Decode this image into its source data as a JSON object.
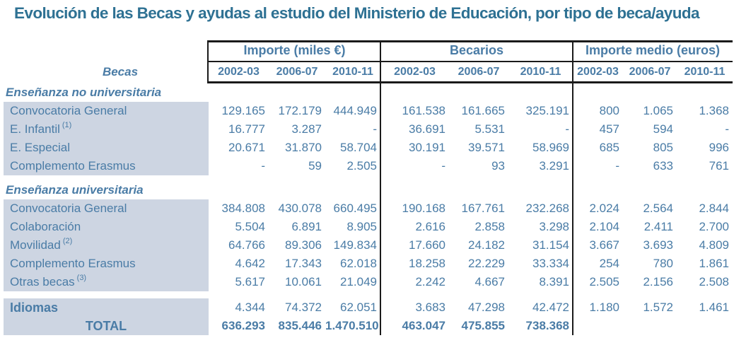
{
  "title": "Evolución de las Becas y ayudas al estudio del Ministerio de Educación, por tipo de beca/ayuda",
  "colors": {
    "title_text": "#2e7193",
    "body_text": "#4a7ca6",
    "row_highlight": "#cdd5e2",
    "rule_lines": "#1a1a1a"
  },
  "table": {
    "corner_label": "Becas",
    "groups": [
      {
        "label": "Importe (miles €)",
        "years": [
          "2002-03",
          "2006-07",
          "2010-11"
        ]
      },
      {
        "label": "Becarios",
        "years": [
          "2002-03",
          "2006-07",
          "2010-11"
        ]
      },
      {
        "label": "Importe medio (euros)",
        "years": [
          "2002-03",
          "2006-07",
          "2010-11"
        ]
      }
    ],
    "sections": [
      {
        "header": "Enseñanza no universitaria",
        "rows": [
          {
            "label": "Convocatoria General",
            "sup": "",
            "style": "normal",
            "values": [
              "129.165",
              "172.179",
              "444.949",
              "161.538",
              "161.665",
              "325.191",
              "800",
              "1.065",
              "1.368"
            ]
          },
          {
            "label": "E. Infantil",
            "sup": "(1)",
            "style": "normal",
            "values": [
              "16.777",
              "3.287",
              "-",
              "36.691",
              "5.531",
              "-",
              "457",
              "594",
              "-"
            ]
          },
          {
            "label": "E. Especial",
            "sup": "",
            "style": "normal",
            "values": [
              "20.671",
              "31.870",
              "58.704",
              "30.191",
              "39.571",
              "58.969",
              "685",
              "805",
              "996"
            ]
          },
          {
            "label": "Complemento Erasmus",
            "sup": "",
            "style": "normal",
            "values": [
              "-",
              "59",
              "2.505",
              "-",
              "93",
              "3.291",
              "-",
              "633",
              "761"
            ]
          }
        ]
      },
      {
        "header": "Enseñanza universitaria",
        "rows": [
          {
            "label": "Convocatoria General",
            "sup": "",
            "style": "normal",
            "values": [
              "384.808",
              "430.078",
              "660.495",
              "190.168",
              "167.761",
              "232.268",
              "2.024",
              "2.564",
              "2.844"
            ]
          },
          {
            "label": "Colaboración",
            "sup": "",
            "style": "normal",
            "values": [
              "5.504",
              "6.891",
              "8.905",
              "2.616",
              "2.858",
              "3.298",
              "2.104",
              "2.411",
              "2.700"
            ]
          },
          {
            "label": "Movilidad",
            "sup": "(2)",
            "style": "normal",
            "values": [
              "64.766",
              "89.306",
              "149.834",
              "17.660",
              "24.182",
              "31.154",
              "3.667",
              "3.693",
              "4.809"
            ]
          },
          {
            "label": "Complemento Erasmus",
            "sup": "",
            "style": "normal",
            "values": [
              "4.642",
              "17.343",
              "62.018",
              "18.258",
              "22.229",
              "33.334",
              "254",
              "780",
              "1.861"
            ]
          },
          {
            "label": "Otras becas",
            "sup": "(3)",
            "style": "normal",
            "values": [
              "5.617",
              "10.061",
              "21.049",
              "2.242",
              "4.667",
              "8.391",
              "2.505",
              "2.156",
              "2.508"
            ]
          }
        ]
      },
      {
        "header": null,
        "rows": [
          {
            "label": "Idiomas",
            "sup": "",
            "style": "bold-label",
            "values": [
              "4.344",
              "74.372",
              "62.051",
              "3.683",
              "47.298",
              "42.472",
              "1.180",
              "1.572",
              "1.461"
            ]
          },
          {
            "label": "TOTAL",
            "sup": "",
            "style": "total",
            "values": [
              "636.293",
              "835.446",
              "1.470.510",
              "463.047",
              "475.855",
              "738.368",
              "",
              "",
              ""
            ]
          }
        ]
      }
    ]
  }
}
